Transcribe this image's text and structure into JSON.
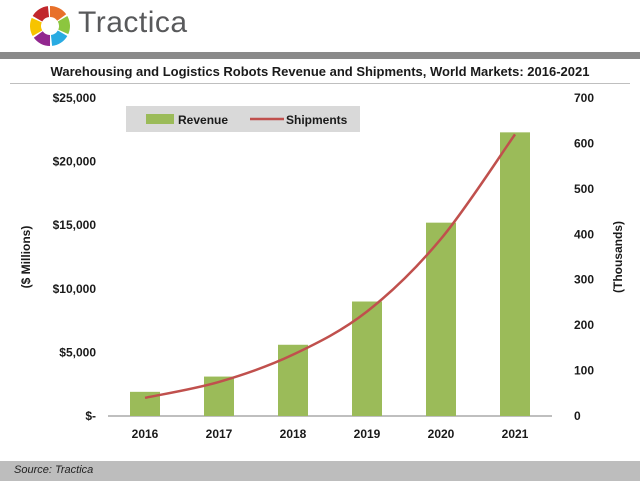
{
  "brand": {
    "name": "Tractica",
    "logo_colors": [
      "#e8702a",
      "#8cc63f",
      "#29abe2",
      "#92278f",
      "#f7c400",
      "#c1272d"
    ]
  },
  "footer": {
    "source": "Source: Tractica"
  },
  "chart_data": {
    "type": "bar",
    "title": "Warehousing and Logistics Robots Revenue and Shipments, World Markets: 2016-2021",
    "categories": [
      "2016",
      "2017",
      "2018",
      "2019",
      "2020",
      "2021"
    ],
    "series": [
      {
        "name": "Revenue",
        "type": "bar",
        "axis": "left",
        "color": "#9bbb59",
        "values": [
          1900,
          3100,
          5600,
          9000,
          15200,
          22300
        ]
      },
      {
        "name": "Shipments",
        "type": "line",
        "axis": "right",
        "color": "#c0504d",
        "values": [
          40,
          75,
          135,
          230,
          390,
          620
        ]
      }
    ],
    "ylabel": "($ Millions)",
    "y2label": "(Thousands)",
    "ylim": [
      0,
      25000
    ],
    "y2lim": [
      0,
      700
    ],
    "yticks": [
      "$-",
      "$5,000",
      "$10,000",
      "$15,000",
      "$20,000",
      "$25,000"
    ],
    "y2ticks": [
      "0",
      "100",
      "200",
      "300",
      "400",
      "500",
      "600",
      "700"
    ],
    "legend_position": "top-left",
    "grid": false
  }
}
